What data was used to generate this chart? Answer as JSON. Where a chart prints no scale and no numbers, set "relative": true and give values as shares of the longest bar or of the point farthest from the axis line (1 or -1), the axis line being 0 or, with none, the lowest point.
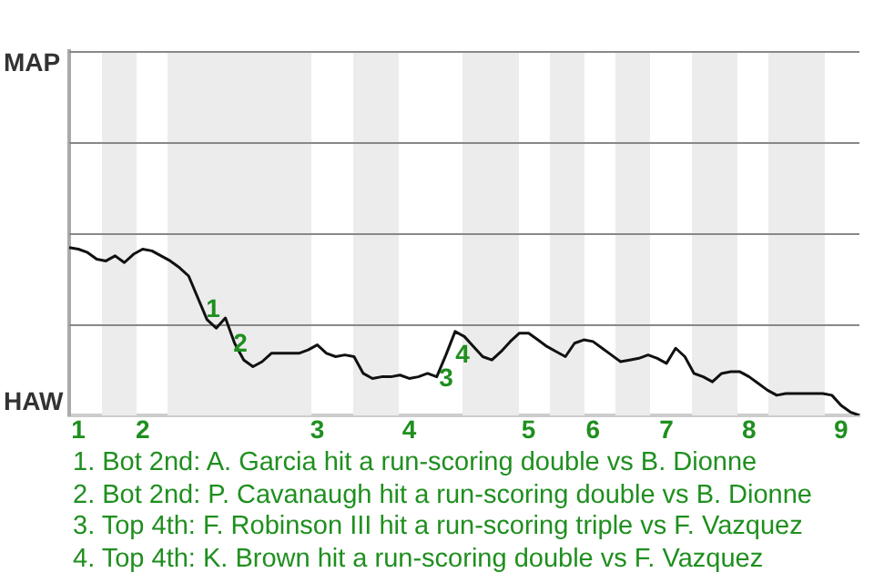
{
  "chart_data": {
    "type": "line",
    "relative": true,
    "categories": [
      null,
      "1",
      null,
      null,
      null,
      null,
      null,
      null,
      "2",
      null,
      null,
      null,
      null,
      null,
      null,
      null,
      null,
      null,
      null,
      null,
      null,
      null,
      null,
      null,
      null,
      null,
      null,
      "3",
      null,
      null,
      null,
      null,
      null,
      null,
      null,
      null,
      null,
      "4",
      null,
      null,
      null,
      null,
      null,
      null,
      null,
      null,
      null,
      null,
      null,
      null,
      "5",
      null,
      null,
      null,
      null,
      null,
      null,
      "6",
      null,
      null,
      null,
      null,
      null,
      null,
      null,
      "7",
      null,
      null,
      null,
      null,
      null,
      null,
      null,
      null,
      "8",
      null,
      null,
      null,
      null,
      null,
      null,
      null,
      null,
      null,
      "9",
      null,
      null
    ],
    "series": [
      {
        "color": "#111111",
        "values": [
          1,
          0.99,
          0.97,
          0.93,
          0.92,
          0.95,
          0.91,
          0.96,
          0.99,
          0.98,
          0.95,
          0.92,
          0.88,
          0.83,
          0.7,
          0.57,
          0.52,
          0.58,
          0.43,
          0.33,
          0.29,
          0.32,
          0.37,
          0.37,
          0.37,
          0.37,
          0.39,
          0.42,
          0.37,
          0.35,
          0.36,
          0.35,
          0.25,
          0.22,
          0.23,
          0.23,
          0.24,
          0.22,
          0.23,
          0.25,
          0.23,
          0.36,
          0.5,
          0.47,
          0.41,
          0.35,
          0.33,
          0.38,
          0.44,
          0.49,
          0.49,
          0.45,
          0.41,
          0.38,
          0.35,
          0.43,
          0.45,
          0.44,
          0.4,
          0.36,
          0.32,
          0.33,
          0.34,
          0.36,
          0.34,
          0.31,
          0.4,
          0.35,
          0.25,
          0.23,
          0.2,
          0.25,
          0.26,
          0.26,
          0.23,
          0.19,
          0.15,
          0.12,
          0.13,
          0.13,
          0.13,
          0.13,
          0.13,
          0.12,
          0.06,
          0.02,
          0
        ]
      }
    ],
    "ref_lines": [
      {
        "axis": "y",
        "value": 0.54,
        "color": "#888888"
      },
      {
        "axis": "y",
        "value": 1.09,
        "color": "#888888"
      },
      {
        "axis": "y",
        "value": 1.63,
        "color": "#888888"
      }
    ],
    "marker": "none",
    "annotations": [
      "1",
      "2",
      "3",
      "4",
      "MAP",
      "HAW",
      "1. Bot 2nd: A. Garcia hit a run-scoring double vs B. Dionne",
      "2. Bot 2nd: P. Cavanaugh hit a run-scoring double vs B. Dionne",
      "3. Top 4th: F. Robinson III hit a run-scoring triple vs F. Vazquez",
      "4. Top 4th: K. Brown hit a run-scoring double vs F. Vazquez"
    ]
  }
}
